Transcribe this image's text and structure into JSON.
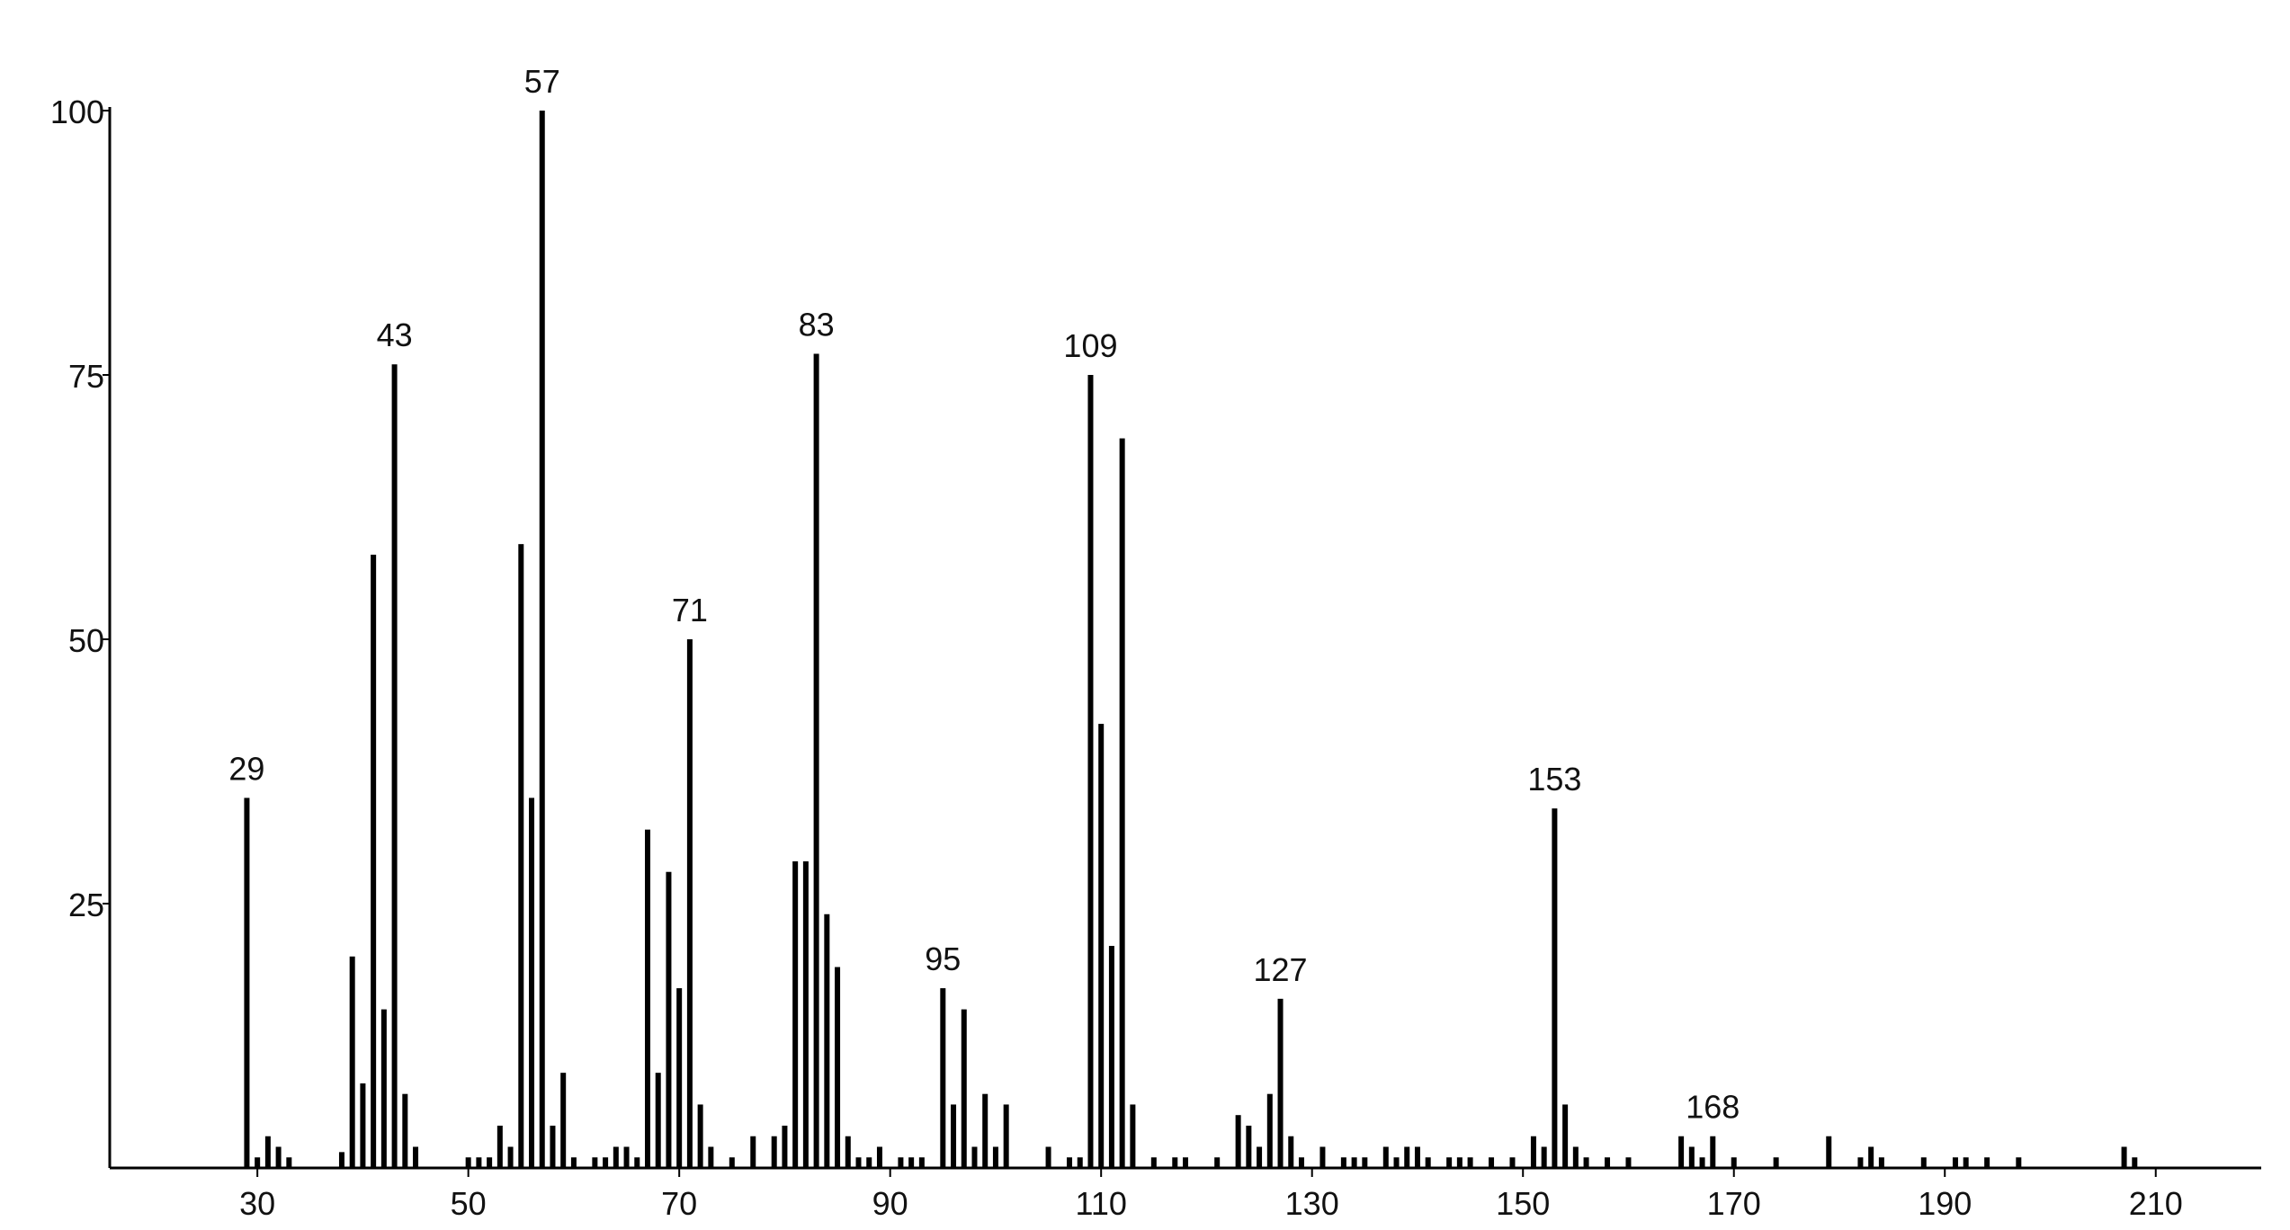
{
  "chart_data": {
    "type": "bar",
    "color": "#000000",
    "x": [
      29,
      30,
      31,
      32,
      33,
      38,
      39,
      40,
      41,
      42,
      43,
      44,
      45,
      50,
      51,
      52,
      53,
      54,
      55,
      56,
      57,
      58,
      59,
      60,
      62,
      63,
      64,
      65,
      66,
      67,
      68,
      69,
      70,
      71,
      72,
      73,
      75,
      77,
      79,
      80,
      81,
      82,
      83,
      84,
      85,
      86,
      87,
      88,
      89,
      91,
      92,
      93,
      95,
      96,
      97,
      98,
      99,
      100,
      101,
      105,
      107,
      108,
      109,
      110,
      111,
      112,
      113,
      115,
      117,
      118,
      121,
      123,
      124,
      125,
      126,
      127,
      128,
      129,
      131,
      133,
      134,
      135,
      137,
      138,
      139,
      140,
      141,
      143,
      144,
      145,
      147,
      149,
      151,
      152,
      153,
      154,
      155,
      156,
      158,
      160,
      165,
      166,
      167,
      168,
      170,
      174,
      179,
      182,
      183,
      184,
      188,
      191,
      192,
      194,
      197,
      207,
      208
    ],
    "values": [
      35,
      1,
      3,
      2,
      1,
      1.5,
      20,
      8,
      58,
      15,
      76,
      7,
      2,
      1,
      1,
      1,
      4,
      2,
      59,
      35,
      100,
      4,
      9,
      1,
      1,
      1,
      2,
      2,
      1,
      32,
      9,
      28,
      17,
      50,
      6,
      2,
      1,
      3,
      3,
      4,
      29,
      29,
      77,
      24,
      19,
      3,
      1,
      1,
      2,
      1,
      1,
      1,
      17,
      6,
      15,
      2,
      7,
      2,
      6,
      2,
      1,
      1,
      75,
      42,
      21,
      69,
      6,
      1,
      1,
      1,
      1,
      5,
      4,
      2,
      7,
      16,
      3,
      1,
      2,
      1,
      1,
      1,
      2,
      1,
      2,
      2,
      1,
      1,
      1,
      1,
      1,
      1,
      3,
      2,
      34,
      6,
      2,
      1,
      1,
      1,
      3,
      2,
      1,
      3,
      1,
      1,
      3,
      1,
      2,
      1,
      1,
      1,
      1,
      1,
      1,
      2,
      1
    ],
    "peak_labels": [
      29,
      43,
      57,
      71,
      83,
      95,
      109,
      127,
      153,
      168
    ],
    "xlim": [
      16,
      220
    ],
    "xticks": [
      30,
      50,
      70,
      90,
      110,
      130,
      150,
      170,
      190,
      210
    ],
    "ylim": [
      0,
      100
    ],
    "yticks": [
      25,
      50,
      75,
      100
    ]
  }
}
